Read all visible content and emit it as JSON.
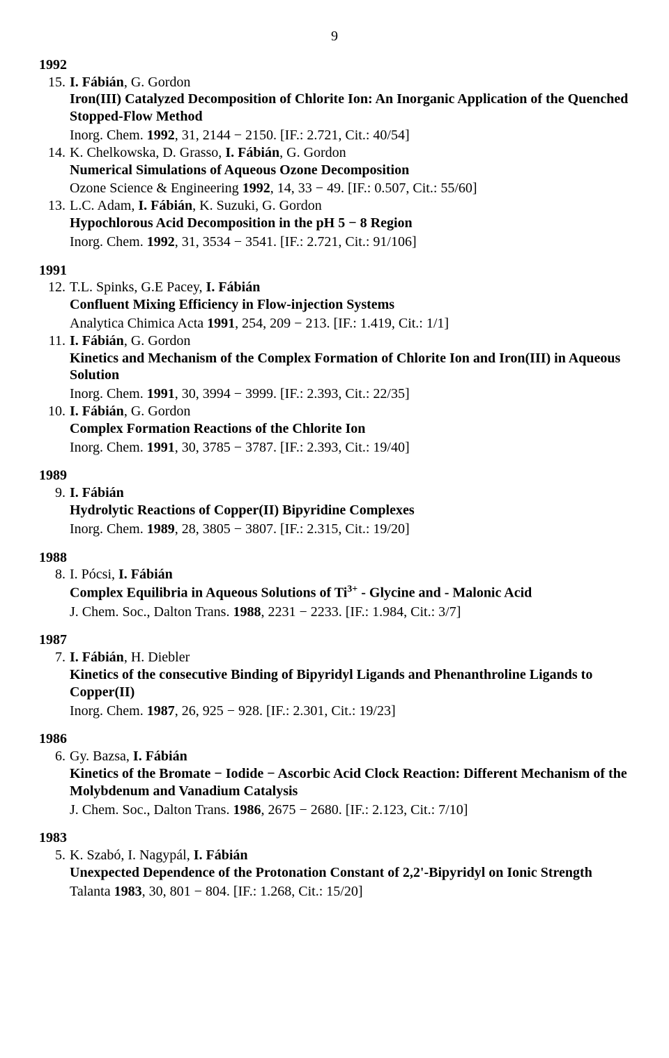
{
  "page_number": "9",
  "sections": [
    {
      "year": "1992",
      "entries": [
        {
          "num": "15.",
          "authors_pre": "",
          "authors_bold": "I. Fábián",
          "authors_post": ", G. Gordon",
          "title": "Iron(III) Catalyzed Decomposition of Chlorite Ion: An Inorganic Application of the Quenched Stopped-Flow Method",
          "source_pre": "Inorg. Chem. ",
          "source_bold": "1992",
          "source_post": ", 31, 2144 − 2150.  [IF.: 2.721, Cit.: 40/54]"
        },
        {
          "num": "14.",
          "authors_pre": "K. Chelkowska, D. Grasso, ",
          "authors_bold": "I. Fábián",
          "authors_post": ", G. Gordon",
          "title": "Numerical Simulations of Aqueous Ozone Decomposition",
          "source_pre": "Ozone Science & Engineering ",
          "source_bold": "1992",
          "source_post": ", 14, 33 − 49.  [IF.: 0.507, Cit.: 55/60]"
        },
        {
          "num": "13.",
          "authors_pre": "L.C. Adam, ",
          "authors_bold": "I. Fábián",
          "authors_post": ", K. Suzuki, G. Gordon",
          "title": "Hypochlorous Acid Decomposition in the pH 5 − 8 Region",
          "source_pre": "Inorg. Chem. ",
          "source_bold": "1992",
          "source_post": ", 31, 3534 − 3541.  [IF.: 2.721, Cit.: 91/106]"
        }
      ]
    },
    {
      "year": "1991",
      "entries": [
        {
          "num": "12.",
          "authors_pre": "T.L. Spinks, G.E Pacey, ",
          "authors_bold": "I. Fábián",
          "authors_post": "",
          "title": "Confluent Mixing Efficiency in Flow-injection Systems",
          "source_pre": "Analytica Chimica Acta ",
          "source_bold": "1991",
          "source_post": ", 254, 209 − 213.  [IF.: 1.419, Cit.: 1/1]"
        },
        {
          "num": "11.",
          "authors_pre": "",
          "authors_bold": "I. Fábián",
          "authors_post": ", G. Gordon",
          "title": "Kinetics and Mechanism of the Complex Formation of Chlorite Ion and Iron(III) in Aqueous Solution",
          "source_pre": "Inorg. Chem. ",
          "source_bold": "1991",
          "source_post": ", 30, 3994 − 3999.  [IF.: 2.393, Cit.: 22/35]"
        },
        {
          "num": "10.",
          "authors_pre": "",
          "authors_bold": "I. Fábián",
          "authors_post": ", G. Gordon",
          "title": "Complex Formation Reactions of the Chlorite Ion",
          "source_pre": "Inorg. Chem. ",
          "source_bold": "1991",
          "source_post": ", 30, 3785 − 3787.  [IF.: 2.393, Cit.: 19/40]"
        }
      ]
    },
    {
      "year": "1989",
      "entries": [
        {
          "num": "9.",
          "authors_pre": "",
          "authors_bold": "I. Fábián",
          "authors_post": "",
          "title": "Hydrolytic Reactions of Copper(II) Bipyridine Complexes",
          "source_pre": "Inorg. Chem. ",
          "source_bold": "1989",
          "source_post": ", 28, 3805 − 3807.  [IF.: 2.315, Cit.: 19/20]"
        }
      ]
    },
    {
      "year": "1988",
      "entries": [
        {
          "num": "8.",
          "authors_pre": "I. Pócsi, ",
          "authors_bold": "I. Fábián",
          "authors_post": "",
          "title_pre": "Complex Equilibria in Aqueous Solutions of Ti",
          "title_sup": "3+",
          "title_post": " - Glycine and - Malonic Acid",
          "source_pre": "J. Chem. Soc., Dalton Trans. ",
          "source_bold": "1988",
          "source_post": ", 2231 − 2233.  [IF.: 1.984, Cit.: 3/7]"
        }
      ]
    },
    {
      "year": "1987",
      "entries": [
        {
          "num": "7.",
          "authors_pre": "",
          "authors_bold": "I. Fábián",
          "authors_post": ", H. Diebler",
          "title": "Kinetics of the consecutive Binding of Bipyridyl Ligands and Phenanthroline Ligands to Copper(II)",
          "source_pre": "Inorg. Chem. ",
          "source_bold": "1987",
          "source_post": ", 26, 925 − 928.  [IF.: 2.301, Cit.: 19/23]"
        }
      ]
    },
    {
      "year": "1986",
      "entries": [
        {
          "num": "6.",
          "authors_pre": "Gy. Bazsa, ",
          "authors_bold": "I. Fábián",
          "authors_post": "",
          "title": "Kinetics of the Bromate − Iodide − Ascorbic Acid Clock Reaction: Different Mechanism of the Molybdenum and Vanadium Catalysis",
          "source_pre": "J. Chem. Soc., Dalton Trans. ",
          "source_bold": "1986",
          "source_post": ", 2675 − 2680.  [IF.: 2.123, Cit.: 7/10]"
        }
      ]
    },
    {
      "year": "1983",
      "entries": [
        {
          "num": "5.",
          "authors_pre": "K. Szabó, I. Nagypál, ",
          "authors_bold": "I. Fábián",
          "authors_post": "",
          "title": "Unexpected Dependence of the Protonation Constant of 2,2'-Bipyridyl on Ionic Strength",
          "source_pre": "Talanta ",
          "source_bold": "1983",
          "source_post": ", 30, 801 −  804.  [IF.: 1.268, Cit.: 15/20]"
        }
      ]
    }
  ]
}
